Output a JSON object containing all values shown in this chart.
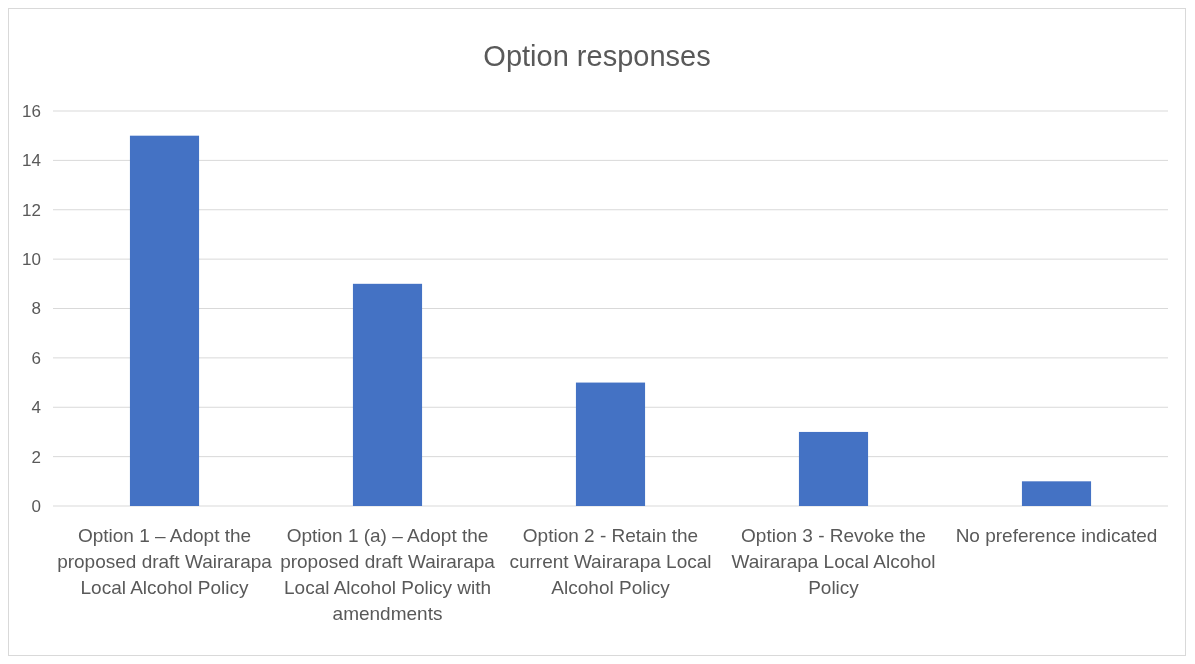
{
  "chart_data": {
    "type": "bar",
    "title": "Option responses",
    "categories": [
      "Option 1 – Adopt the proposed draft Wairarapa Local Alcohol Policy",
      "Option 1 (a) – Adopt the proposed draft Wairarapa Local Alcohol Policy with amendments",
      "Option 2 - Retain the current Wairarapa Local Alcohol Policy",
      "Option 3 - Revoke the Wairarapa Local Alcohol Policy",
      "No preference indicated"
    ],
    "values": [
      15,
      9,
      5,
      3,
      1
    ],
    "color": "#4472c4",
    "ylim": [
      0,
      16
    ],
    "yticks": [
      0,
      2,
      4,
      6,
      8,
      10,
      12,
      14,
      16
    ],
    "grid": "y"
  }
}
